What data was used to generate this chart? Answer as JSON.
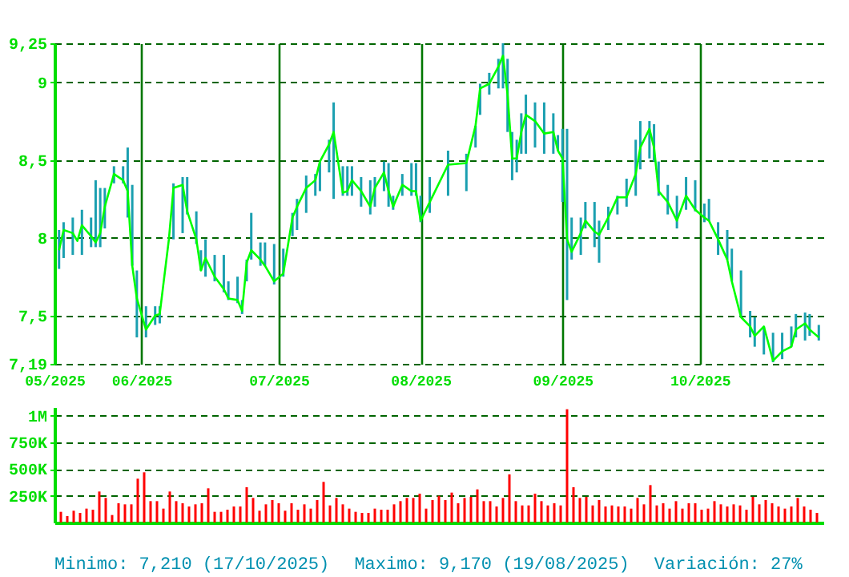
{
  "chart_data": [
    {
      "type": "line",
      "xlim": [
        "2025-05-13",
        "2025-10-28"
      ],
      "xticks": [
        {
          "value": "2025-05-13",
          "label": "05/2025"
        },
        {
          "value": "2025-06-01",
          "label": "06/2025"
        },
        {
          "value": "2025-07-01",
          "label": "07/2025"
        },
        {
          "value": "2025-08-01",
          "label": "08/2025"
        },
        {
          "value": "2025-09-01",
          "label": "09/2025"
        },
        {
          "value": "2025-10-01",
          "label": "10/2025"
        }
      ],
      "ylim": [
        7.19,
        9.25
      ],
      "yticks": [
        {
          "value": 7.19,
          "label": "7,19"
        },
        {
          "value": 7.5,
          "label": "7,5"
        },
        8,
        {
          "value": 8.5,
          "label": "8,5"
        },
        9,
        {
          "value": 9.25,
          "label": "9,25"
        }
      ],
      "grid": true,
      "series": [
        {
          "color": "#00ff00",
          "x": [
            "2025-05-14",
            "2025-05-15",
            "2025-05-17",
            "2025-05-18",
            "2025-05-19",
            "2025-05-21",
            "2025-05-22",
            "2025-05-23",
            "2025-05-24",
            "2025-05-26",
            "2025-05-28",
            "2025-05-29",
            "2025-05-30",
            "2025-05-31",
            "2025-06-02",
            "2025-06-04",
            "2025-06-05",
            "2025-06-07",
            "2025-06-08",
            "2025-06-10",
            "2025-06-11",
            "2025-06-13",
            "2025-06-14",
            "2025-06-15",
            "2025-06-17",
            "2025-06-19",
            "2025-06-20",
            "2025-06-22",
            "2025-06-23",
            "2025-06-24",
            "2025-06-25",
            "2025-06-27",
            "2025-06-28",
            "2025-06-30",
            "2025-07-02",
            "2025-07-04",
            "2025-07-05",
            "2025-07-07",
            "2025-07-09",
            "2025-07-10",
            "2025-07-12",
            "2025-07-13",
            "2025-07-15",
            "2025-07-16",
            "2025-07-17",
            "2025-07-19",
            "2025-07-21",
            "2025-07-22",
            "2025-07-24",
            "2025-07-25",
            "2025-07-26",
            "2025-07-28",
            "2025-07-30",
            "2025-07-31",
            "2025-08-01",
            "2025-08-03",
            "2025-08-07",
            "2025-08-11",
            "2025-08-13",
            "2025-08-14",
            "2025-08-16",
            "2025-08-18",
            "2025-08-19",
            "2025-08-20",
            "2025-08-21",
            "2025-08-22",
            "2025-08-23",
            "2025-08-24",
            "2025-08-26",
            "2025-08-28",
            "2025-08-30",
            "2025-08-31",
            "2025-09-01",
            "2025-09-02",
            "2025-09-03",
            "2025-09-05",
            "2025-09-06",
            "2025-09-08",
            "2025-09-09",
            "2025-09-11",
            "2025-09-13",
            "2025-09-15",
            "2025-09-17",
            "2025-09-18",
            "2025-09-20",
            "2025-09-21",
            "2025-09-22",
            "2025-09-24",
            "2025-09-26",
            "2025-09-28",
            "2025-09-30",
            "2025-10-02",
            "2025-10-03",
            "2025-10-05",
            "2025-10-07",
            "2025-10-08",
            "2025-10-10",
            "2025-10-12",
            "2025-10-13",
            "2025-10-15",
            "2025-10-17",
            "2025-10-19",
            "2025-10-21",
            "2025-10-22",
            "2025-10-24",
            "2025-10-25",
            "2025-10-27"
          ],
          "values": [
            7.92,
            8.05,
            8.03,
            7.98,
            8.08,
            8.01,
            7.97,
            8.03,
            8.2,
            8.41,
            8.37,
            8.3,
            7.82,
            7.61,
            7.41,
            7.5,
            7.51,
            7.99,
            8.32,
            8.34,
            8.17,
            7.99,
            7.79,
            7.87,
            7.75,
            7.67,
            7.61,
            7.6,
            7.53,
            7.84,
            7.92,
            7.86,
            7.82,
            7.72,
            7.77,
            8.13,
            8.2,
            8.32,
            8.37,
            8.49,
            8.6,
            8.68,
            8.29,
            8.3,
            8.37,
            8.3,
            8.2,
            8.32,
            8.42,
            8.3,
            8.2,
            8.34,
            8.3,
            8.3,
            8.11,
            8.23,
            8.47,
            8.48,
            8.72,
            8.96,
            8.99,
            9.1,
            9.17,
            8.92,
            8.51,
            8.51,
            8.68,
            8.79,
            8.75,
            8.67,
            8.68,
            8.56,
            8.51,
            7.99,
            7.91,
            8.03,
            8.11,
            8.04,
            8.02,
            8.13,
            8.26,
            8.26,
            8.41,
            8.58,
            8.7,
            8.58,
            8.3,
            8.23,
            8.11,
            8.27,
            8.18,
            8.13,
            8.11,
            7.99,
            7.86,
            7.72,
            7.49,
            7.43,
            7.37,
            7.43,
            7.21,
            7.27,
            7.3,
            7.41,
            7.45,
            7.41,
            7.36
          ],
          "errors": [
            [
              7.8,
              8.05
            ],
            [
              7.87,
              8.1
            ],
            [
              7.89,
              8.13
            ],
            null,
            [
              7.89,
              8.18
            ],
            [
              7.94,
              8.13
            ],
            [
              7.94,
              8.37
            ],
            [
              7.94,
              8.32
            ],
            [
              8.06,
              8.32
            ],
            [
              8.35,
              8.46
            ],
            [
              8.35,
              8.46
            ],
            [
              8.13,
              8.58
            ],
            [
              7.82,
              8.34
            ],
            [
              7.36,
              7.79
            ],
            [
              7.36,
              7.56
            ],
            [
              7.44,
              7.56
            ],
            [
              7.45,
              7.56
            ],
            null,
            [
              7.99,
              8.35
            ],
            [
              8.03,
              8.39
            ],
            [
              8.15,
              8.39
            ],
            [
              7.96,
              8.17
            ],
            [
              7.79,
              7.92
            ],
            [
              7.75,
              7.99
            ],
            [
              7.72,
              7.89
            ],
            [
              7.65,
              7.89
            ],
            [
              7.6,
              7.72
            ],
            [
              7.58,
              7.75
            ],
            [
              7.51,
              7.6
            ],
            [
              7.72,
              7.86
            ],
            [
              7.86,
              8.16
            ],
            [
              7.82,
              7.97
            ],
            [
              7.82,
              7.97
            ],
            [
              7.7,
              7.96
            ],
            [
              7.75,
              7.93
            ],
            [
              8.01,
              8.16
            ],
            [
              8.05,
              8.25
            ],
            [
              8.16,
              8.4
            ],
            [
              8.27,
              8.41
            ],
            [
              8.3,
              8.49
            ],
            [
              8.42,
              8.63
            ],
            [
              8.25,
              8.87
            ],
            [
              8.27,
              8.46
            ],
            [
              8.27,
              8.46
            ],
            [
              8.27,
              8.46
            ],
            [
              8.2,
              8.39
            ],
            [
              8.15,
              8.37
            ],
            [
              8.2,
              8.39
            ],
            [
              8.3,
              8.49
            ],
            [
              8.2,
              8.48
            ],
            [
              8.18,
              8.27
            ],
            [
              8.27,
              8.41
            ],
            [
              8.27,
              8.48
            ],
            [
              8.27,
              8.48
            ],
            [
              8.1,
              8.27
            ],
            [
              8.16,
              8.39
            ],
            [
              8.27,
              8.56
            ],
            [
              8.3,
              8.54
            ],
            [
              8.58,
              8.72
            ],
            [
              8.79,
              8.99
            ],
            [
              8.92,
              9.06
            ],
            [
              8.96,
              9.15
            ],
            [
              8.96,
              9.25
            ],
            [
              8.68,
              9.15
            ],
            [
              8.37,
              8.68
            ],
            [
              8.42,
              8.63
            ],
            [
              8.54,
              8.8
            ],
            [
              8.54,
              8.92
            ],
            [
              8.58,
              8.87
            ],
            [
              8.54,
              8.87
            ],
            [
              8.54,
              8.8
            ],
            [
              8.56,
              8.66
            ],
            [
              8.23,
              8.7
            ],
            [
              7.6,
              8.7
            ],
            [
              7.86,
              8.13
            ],
            [
              7.89,
              8.13
            ],
            [
              8.06,
              8.23
            ],
            [
              7.94,
              8.23
            ],
            [
              7.84,
              8.11
            ],
            [
              8.05,
              8.2
            ],
            [
              8.15,
              8.27
            ],
            [
              8.2,
              8.38
            ],
            [
              8.27,
              8.63
            ],
            [
              8.44,
              8.75
            ],
            [
              8.51,
              8.75
            ],
            [
              8.49,
              8.73
            ],
            [
              8.27,
              8.49
            ],
            [
              8.15,
              8.34
            ],
            [
              8.06,
              8.27
            ],
            [
              8.18,
              8.39
            ],
            [
              8.17,
              8.37
            ],
            [
              8.1,
              8.22
            ],
            [
              8.11,
              8.25
            ],
            [
              7.89,
              8.1
            ],
            [
              7.86,
              8.05
            ],
            [
              7.72,
              7.93
            ],
            [
              7.49,
              7.79
            ],
            [
              7.36,
              7.53
            ],
            [
              7.3,
              7.49
            ],
            [
              7.25,
              7.43
            ],
            [
              7.2,
              7.39
            ],
            [
              7.22,
              7.39
            ],
            [
              7.3,
              7.43
            ],
            [
              7.36,
              7.51
            ],
            [
              7.34,
              7.52
            ],
            [
              7.37,
              7.51
            ],
            [
              7.34,
              7.44
            ]
          ]
        }
      ]
    },
    {
      "type": "bar",
      "color": "#ff0000",
      "ylim": [
        0,
        1080000
      ],
      "yticks": [
        {
          "value": 250000,
          "label": "250K"
        },
        {
          "value": 500000,
          "label": "500K"
        },
        {
          "value": 750000,
          "label": "750K"
        },
        {
          "value": 1000000,
          "label": "1M"
        }
      ],
      "grid": "y",
      "tick_labels": "y",
      "categories": [
        null,
        null,
        null,
        null,
        null,
        null,
        null,
        null,
        null,
        null,
        null,
        null,
        null,
        null,
        null,
        null,
        null,
        null,
        null,
        null,
        null,
        null,
        null,
        null,
        null,
        null,
        null,
        null,
        null,
        null,
        null,
        null,
        null,
        null,
        null,
        null,
        null,
        null,
        null,
        null,
        null,
        null,
        null,
        null,
        null,
        null,
        null,
        null,
        null,
        null,
        null,
        null,
        null,
        null,
        null,
        null,
        null,
        null,
        null,
        null,
        null,
        null,
        null,
        null,
        null,
        null,
        null,
        null,
        null,
        null,
        null,
        null,
        null,
        null,
        null,
        null,
        null,
        null,
        null,
        null,
        null,
        null,
        null,
        null,
        null,
        null,
        null,
        null,
        null,
        null,
        null,
        null,
        null,
        null,
        null,
        null,
        null,
        null,
        null,
        null,
        null,
        null,
        null,
        null,
        null,
        null,
        null,
        null,
        null,
        null,
        null,
        null,
        null,
        null,
        null,
        null,
        null,
        null,
        null
      ],
      "values": [
        100000,
        60000,
        110000,
        90000,
        130000,
        120000,
        290000,
        230000,
        70000,
        180000,
        170000,
        170000,
        410000,
        470000,
        200000,
        200000,
        130000,
        290000,
        200000,
        180000,
        150000,
        170000,
        180000,
        320000,
        100000,
        100000,
        120000,
        150000,
        150000,
        330000,
        230000,
        110000,
        170000,
        210000,
        180000,
        110000,
        180000,
        120000,
        170000,
        130000,
        210000,
        380000,
        160000,
        230000,
        170000,
        130000,
        100000,
        90000,
        90000,
        130000,
        120000,
        120000,
        170000,
        200000,
        230000,
        230000,
        270000,
        130000,
        210000,
        250000,
        210000,
        280000,
        180000,
        230000,
        240000,
        310000,
        200000,
        200000,
        150000,
        230000,
        450000,
        200000,
        160000,
        160000,
        270000,
        200000,
        160000,
        180000,
        160000,
        1060000,
        330000,
        230000,
        240000,
        160000,
        210000,
        150000,
        160000,
        150000,
        150000,
        130000,
        230000,
        170000,
        350000,
        160000,
        180000,
        130000,
        200000,
        130000,
        180000,
        180000,
        120000,
        130000,
        200000,
        170000,
        150000,
        170000,
        160000,
        120000,
        240000,
        170000,
        210000,
        180000,
        150000,
        130000,
        150000,
        230000,
        150000,
        120000,
        90000
      ],
      "annotations": [
        "Minimo: 7,210 (17/10/2025)",
        "Maximo: 9,170 (19/08/2025)",
        "Variación: 27%"
      ]
    }
  ]
}
